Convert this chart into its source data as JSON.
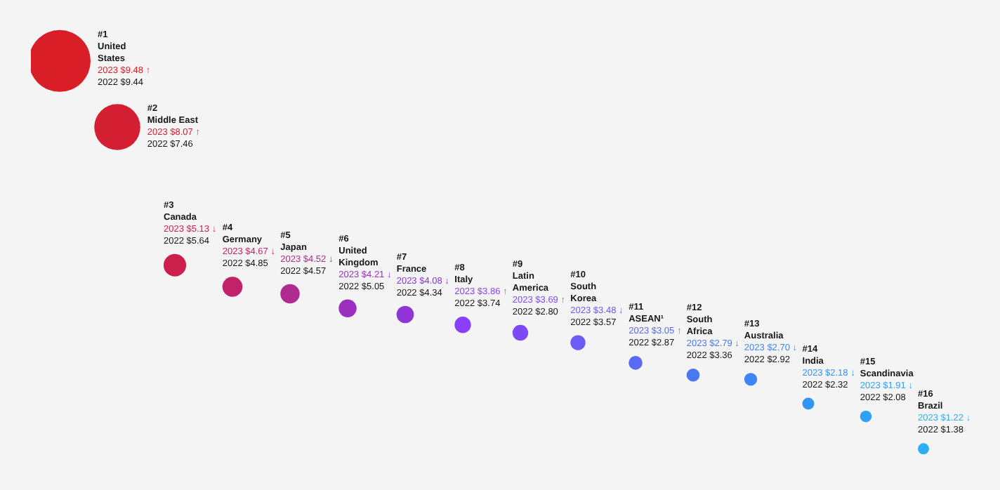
{
  "chart_data": {
    "type": "other",
    "categories": [
      "United States",
      "Middle East",
      "Canada",
      "Germany",
      "Japan",
      "United Kingdom",
      "France",
      "Italy",
      "Latin America",
      "South Korea",
      "ASEAN¹",
      "South Africa",
      "Australia",
      "India",
      "Scandinavia",
      "Brazil"
    ],
    "values": [
      9.48,
      8.07,
      5.13,
      4.67,
      4.52,
      4.21,
      4.08,
      3.86,
      3.69,
      3.48,
      3.05,
      2.79,
      2.7,
      2.18,
      1.91,
      1.22
    ],
    "colors": [
      "#da1e28",
      "#d41f33",
      "#cc1f4c",
      "#c2226a",
      "#b02a8f",
      "#9b30c0",
      "#8f35d6",
      "#8a3ffc",
      "#7d48f5",
      "#6c5bf5",
      "#5b6af5",
      "#4a78f5",
      "#3d86f5",
      "#3295f5",
      "#2ea2f5",
      "#2eaef5"
    ],
    "value_labels": [
      "2023 $9.48 ↑",
      "2023 $8.07 ↑",
      "2023 $5.13 ↓",
      "2023 $4.67 ↓",
      "2023 $4.52 ↓",
      "2023 $4.21 ↓",
      "2023 $4.08 ↓",
      "2023 $3.86 ↑",
      "2023 $3.69 ↑",
      "2023 $3.48 ↓",
      "2023 $3.05 ↑",
      "2023 $2.79 ↓",
      "2023 $2.70 ↓",
      "2023 $2.18 ↓",
      "2023 $1.91 ↓",
      "2023 $1.22 ↓"
    ],
    "annotations": [
      "#1",
      "2022 $9.44",
      "#2",
      "2022 $7.46",
      "#3",
      "2022 $5.64",
      "#4",
      "2022 $4.85",
      "#5",
      "2022 $4.57",
      "#6",
      "2022 $5.05",
      "#7",
      "2022 $4.34",
      "#8",
      "2022 $3.74",
      "#9",
      "2022 $2.80",
      "#10",
      "2022 $3.57",
      "#11",
      "2022 $2.87",
      "#12",
      "2022 $3.36",
      "#13",
      "2022 $2.92",
      "#14",
      "2022 $2.32",
      "#15",
      "2022 $2.08",
      "#16",
      "2022 $1.38"
    ]
  }
}
